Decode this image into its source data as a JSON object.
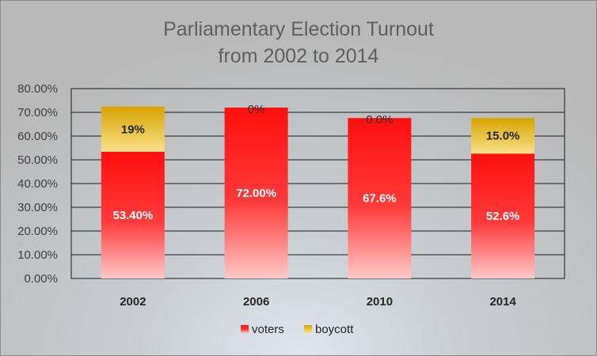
{
  "chart_data": {
    "type": "bar",
    "stacked": true,
    "title": [
      "Parliamentary Election Turnout",
      "from 2002 to 2014"
    ],
    "categories": [
      "2002",
      "2006",
      "2010",
      "2014"
    ],
    "series": [
      {
        "name": "voters",
        "values": [
          53.4,
          72.0,
          67.6,
          52.6
        ],
        "labels": [
          "53.40%",
          "72.00%",
          "67.6%",
          "52.6%"
        ],
        "color": "#ff1a1a"
      },
      {
        "name": "boycott",
        "values": [
          19,
          0,
          0,
          15.0
        ],
        "labels": [
          "19%",
          "0%",
          "0.0%",
          "15.0%"
        ],
        "color": "#e6b619"
      }
    ],
    "y_ticks": [
      "0.00%",
      "10.00%",
      "20.00%",
      "30.00%",
      "40.00%",
      "50.00%",
      "60.00%",
      "70.00%",
      "80.00%"
    ],
    "ylim": [
      0,
      80
    ],
    "grid": true,
    "legend": "bottom"
  }
}
